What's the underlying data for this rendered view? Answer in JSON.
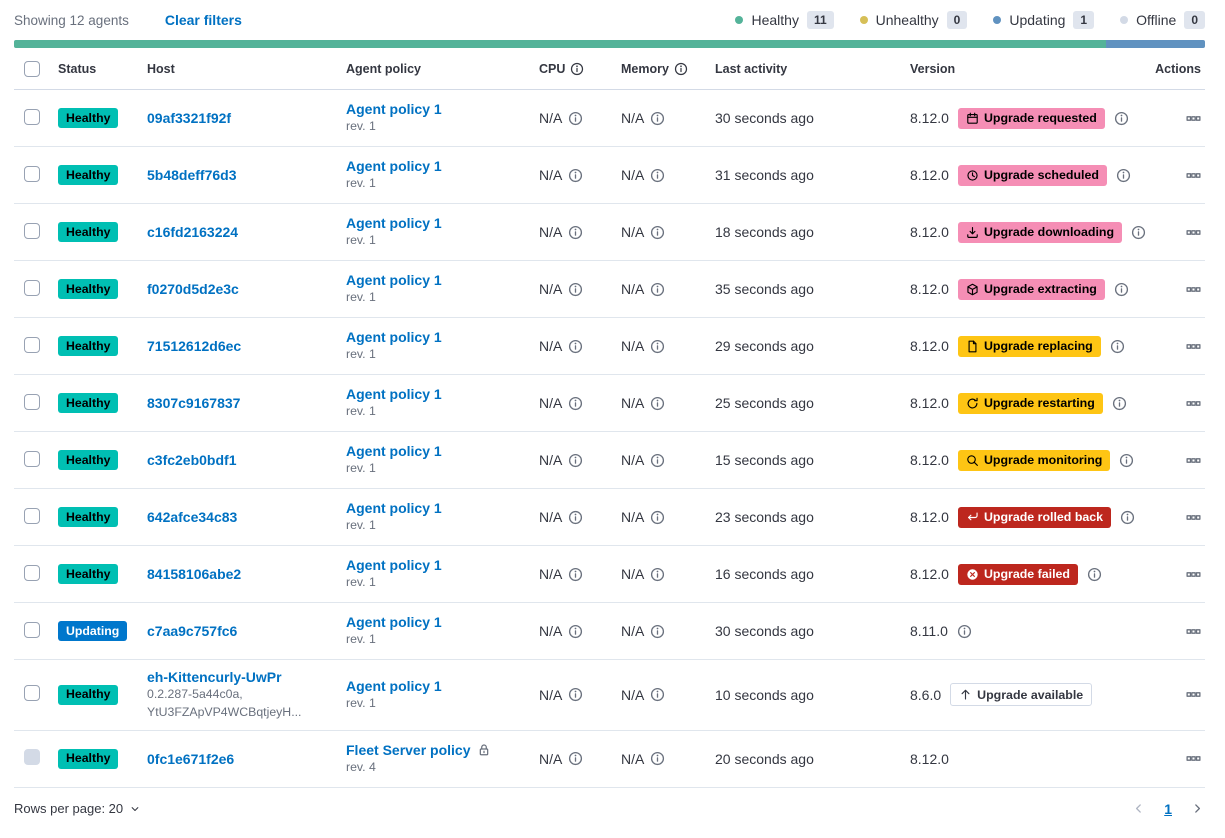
{
  "colors": {
    "link": "#0071C2",
    "text": "#343741",
    "subdued": "#69707D"
  },
  "header": {
    "showing": "Showing 12 agents",
    "clear_filters": "Clear filters",
    "legend": [
      {
        "id": "healthy",
        "label": "Healthy",
        "count": "11",
        "color": "#54B399"
      },
      {
        "id": "unhealthy",
        "label": "Unhealthy",
        "count": "0",
        "color": "#D6BF57"
      },
      {
        "id": "updating",
        "label": "Updating",
        "count": "1",
        "color": "#6092C0"
      },
      {
        "id": "offline",
        "label": "Offline",
        "count": "0",
        "color": "#D3DAE6"
      }
    ],
    "health_bar": [
      {
        "status": "healthy",
        "color": "#54B399",
        "fraction": 0.9167
      },
      {
        "status": "updating",
        "color": "#6092C0",
        "fraction": 0.0833
      }
    ]
  },
  "table": {
    "headers": {
      "status": "Status",
      "host": "Host",
      "policy": "Agent policy",
      "cpu": "CPU",
      "memory": "Memory",
      "last_activity": "Last activity",
      "version": "Version",
      "actions": "Actions"
    }
  },
  "rows": [
    {
      "status": {
        "label": "Healthy",
        "bg": "#00BFB3",
        "fg": "#000000"
      },
      "host": "09af3321f92f",
      "host_sub": [],
      "policy": {
        "name": "Agent policy 1",
        "rev": "rev. 1",
        "locked": false
      },
      "cpu": "N/A",
      "memory": "N/A",
      "last_activity": "30 seconds ago",
      "version": "8.12.0",
      "badge": {
        "label": "Upgrade requested",
        "icon": "calendar",
        "bg": "#F58EB5",
        "fg": "#000000",
        "border": ""
      },
      "version_info": true,
      "checkbox_disabled": false
    },
    {
      "status": {
        "label": "Healthy",
        "bg": "#00BFB3",
        "fg": "#000000"
      },
      "host": "5b48deff76d3",
      "host_sub": [],
      "policy": {
        "name": "Agent policy 1",
        "rev": "rev. 1",
        "locked": false
      },
      "cpu": "N/A",
      "memory": "N/A",
      "last_activity": "31 seconds ago",
      "version": "8.12.0",
      "badge": {
        "label": "Upgrade scheduled",
        "icon": "clock",
        "bg": "#F58EB5",
        "fg": "#000000",
        "border": ""
      },
      "version_info": true,
      "checkbox_disabled": false
    },
    {
      "status": {
        "label": "Healthy",
        "bg": "#00BFB3",
        "fg": "#000000"
      },
      "host": "c16fd2163224",
      "host_sub": [],
      "policy": {
        "name": "Agent policy 1",
        "rev": "rev. 1",
        "locked": false
      },
      "cpu": "N/A",
      "memory": "N/A",
      "last_activity": "18 seconds ago",
      "version": "8.12.0",
      "badge": {
        "label": "Upgrade downloading",
        "icon": "download",
        "bg": "#F58EB5",
        "fg": "#000000",
        "border": ""
      },
      "version_info": true,
      "checkbox_disabled": false
    },
    {
      "status": {
        "label": "Healthy",
        "bg": "#00BFB3",
        "fg": "#000000"
      },
      "host": "f0270d5d2e3c",
      "host_sub": [],
      "policy": {
        "name": "Agent policy 1",
        "rev": "rev. 1",
        "locked": false
      },
      "cpu": "N/A",
      "memory": "N/A",
      "last_activity": "35 seconds ago",
      "version": "8.12.0",
      "badge": {
        "label": "Upgrade extracting",
        "icon": "package",
        "bg": "#F58EB5",
        "fg": "#000000",
        "border": ""
      },
      "version_info": true,
      "checkbox_disabled": false
    },
    {
      "status": {
        "label": "Healthy",
        "bg": "#00BFB3",
        "fg": "#000000"
      },
      "host": "71512612d6ec",
      "host_sub": [],
      "policy": {
        "name": "Agent policy 1",
        "rev": "rev. 1",
        "locked": false
      },
      "cpu": "N/A",
      "memory": "N/A",
      "last_activity": "29 seconds ago",
      "version": "8.12.0",
      "badge": {
        "label": "Upgrade replacing",
        "icon": "document",
        "bg": "#FEC514",
        "fg": "#000000",
        "border": ""
      },
      "version_info": true,
      "checkbox_disabled": false
    },
    {
      "status": {
        "label": "Healthy",
        "bg": "#00BFB3",
        "fg": "#000000"
      },
      "host": "8307c9167837",
      "host_sub": [],
      "policy": {
        "name": "Agent policy 1",
        "rev": "rev. 1",
        "locked": false
      },
      "cpu": "N/A",
      "memory": "N/A",
      "last_activity": "25 seconds ago",
      "version": "8.12.0",
      "badge": {
        "label": "Upgrade restarting",
        "icon": "refresh",
        "bg": "#FEC514",
        "fg": "#000000",
        "border": ""
      },
      "version_info": true,
      "checkbox_disabled": false
    },
    {
      "status": {
        "label": "Healthy",
        "bg": "#00BFB3",
        "fg": "#000000"
      },
      "host": "c3fc2eb0bdf1",
      "host_sub": [],
      "policy": {
        "name": "Agent policy 1",
        "rev": "rev. 1",
        "locked": false
      },
      "cpu": "N/A",
      "memory": "N/A",
      "last_activity": "15 seconds ago",
      "version": "8.12.0",
      "badge": {
        "label": "Upgrade monitoring",
        "icon": "inspect",
        "bg": "#FEC514",
        "fg": "#000000",
        "border": ""
      },
      "version_info": true,
      "checkbox_disabled": false
    },
    {
      "status": {
        "label": "Healthy",
        "bg": "#00BFB3",
        "fg": "#000000"
      },
      "host": "642afce34c83",
      "host_sub": [],
      "policy": {
        "name": "Agent policy 1",
        "rev": "rev. 1",
        "locked": false
      },
      "cpu": "N/A",
      "memory": "N/A",
      "last_activity": "23 seconds ago",
      "version": "8.12.0",
      "badge": {
        "label": "Upgrade rolled back",
        "icon": "return",
        "bg": "#BD271E",
        "fg": "#FFFFFF",
        "border": ""
      },
      "version_info": true,
      "checkbox_disabled": false
    },
    {
      "status": {
        "label": "Healthy",
        "bg": "#00BFB3",
        "fg": "#000000"
      },
      "host": "84158106abe2",
      "host_sub": [],
      "policy": {
        "name": "Agent policy 1",
        "rev": "rev. 1",
        "locked": false
      },
      "cpu": "N/A",
      "memory": "N/A",
      "last_activity": "16 seconds ago",
      "version": "8.12.0",
      "badge": {
        "label": "Upgrade failed",
        "icon": "crossInCircle",
        "bg": "#BD271E",
        "fg": "#FFFFFF",
        "border": ""
      },
      "version_info": true,
      "checkbox_disabled": false
    },
    {
      "status": {
        "label": "Updating",
        "bg": "#0077CC",
        "fg": "#FFFFFF"
      },
      "host": "c7aa9c757fc6",
      "host_sub": [],
      "policy": {
        "name": "Agent policy 1",
        "rev": "rev. 1",
        "locked": false
      },
      "cpu": "N/A",
      "memory": "N/A",
      "last_activity": "30 seconds ago",
      "version": "8.11.0",
      "badge": null,
      "version_info": true,
      "checkbox_disabled": false
    },
    {
      "status": {
        "label": "Healthy",
        "bg": "#00BFB3",
        "fg": "#000000"
      },
      "host": "eh-Kittencurly-UwPr",
      "host_sub": [
        "0.2.287-5a44c0a,",
        "YtU3FZApVP4WCBqtjeyH..."
      ],
      "policy": {
        "name": "Agent policy 1",
        "rev": "rev. 1",
        "locked": false
      },
      "cpu": "N/A",
      "memory": "N/A",
      "last_activity": "10 seconds ago",
      "version": "8.6.0",
      "badge": {
        "label": "Upgrade available",
        "icon": "arrowUp",
        "bg": "#FFFFFF",
        "fg": "#343741",
        "border": "#D3DAE6"
      },
      "version_info": false,
      "checkbox_disabled": false
    },
    {
      "status": {
        "label": "Healthy",
        "bg": "#00BFB3",
        "fg": "#000000"
      },
      "host": "0fc1e671f2e6",
      "host_sub": [],
      "policy": {
        "name": "Fleet Server policy",
        "rev": "rev. 4",
        "locked": true
      },
      "cpu": "N/A",
      "memory": "N/A",
      "last_activity": "20 seconds ago",
      "version": "8.12.0",
      "badge": null,
      "version_info": false,
      "checkbox_disabled": true
    }
  ],
  "footer": {
    "rows_per_page": "Rows per page: 20",
    "page": "1"
  }
}
